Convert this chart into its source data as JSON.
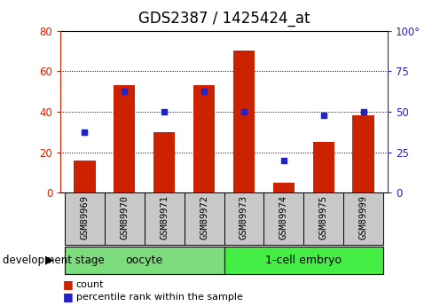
{
  "title": "GDS2387 / 1425424_at",
  "samples": [
    "GSM89969",
    "GSM89970",
    "GSM89971",
    "GSM89972",
    "GSM89973",
    "GSM89974",
    "GSM89975",
    "GSM89999"
  ],
  "counts": [
    16,
    53,
    30,
    53,
    70,
    5,
    25,
    38
  ],
  "percentile_ranks": [
    37.5,
    62.5,
    50,
    62.5,
    50,
    20,
    48,
    50
  ],
  "groups": [
    {
      "label": "oocyte",
      "start": 0,
      "end": 4,
      "color": "#7ddd7d"
    },
    {
      "label": "1-cell embryo",
      "start": 4,
      "end": 8,
      "color": "#44ee44"
    }
  ],
  "group_label_prefix": "development stage",
  "left_ylim": [
    0,
    80
  ],
  "right_ylim": [
    0,
    100
  ],
  "left_yticks": [
    0,
    20,
    40,
    60,
    80
  ],
  "right_yticks": [
    0,
    25,
    50,
    75,
    100
  ],
  "bar_color": "#cc2200",
  "dot_color": "#2222cc",
  "bar_width": 0.55,
  "title_fontsize": 12,
  "tick_fontsize": 8.5,
  "grid_color": "black",
  "plot_bg": "white",
  "tick_label_color_left": "#cc2200",
  "tick_label_color_right": "#2222cc",
  "label_box_color": "#c8c8c8",
  "label_fontsize": 7.5,
  "group_fontsize": 9,
  "legend_fontsize": 8
}
